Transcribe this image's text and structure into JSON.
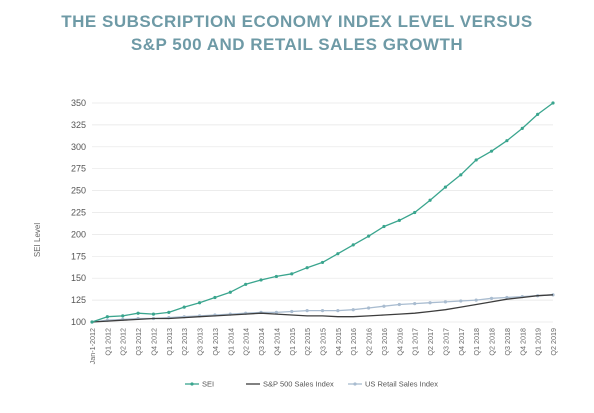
{
  "chart_data": {
    "type": "line",
    "title_lines": [
      "THE SUBSCRIPTION ECONOMY INDEX LEVEL VERSUS",
      "S&P 500 AND RETAIL SALES GROWTH"
    ],
    "xlabel": "",
    "ylabel": "SEI Level",
    "ylim": [
      100,
      350
    ],
    "yticks": [
      100,
      125,
      150,
      175,
      200,
      225,
      250,
      275,
      300,
      325,
      350
    ],
    "grid": true,
    "legend_position": "bottom",
    "categories": [
      "Jan-1-2012",
      "Q1 2012",
      "Q2 2012",
      "Q3 2012",
      "Q4 2012",
      "Q1 2013",
      "Q2 2013",
      "Q3 2013",
      "Q4 2013",
      "Q1 2014",
      "Q2 2014",
      "Q3 2014",
      "Q4 2014",
      "Q1 2015",
      "Q2 2015",
      "Q3 2015",
      "Q4 2015",
      "Q1 2016",
      "Q2 2016",
      "Q3 2016",
      "Q4 2016",
      "Q1 2017",
      "Q2 2017",
      "Q3 2017",
      "Q4 2017",
      "Q1 2018",
      "Q2 2018",
      "Q3 2018",
      "Q4 2018",
      "Q1 2019",
      "Q2 2019"
    ],
    "series": [
      {
        "name": "SEI",
        "color": "#3aa58e",
        "marker": true,
        "values": [
          100,
          106,
          107,
          110,
          109,
          111,
          117,
          122,
          128,
          134,
          143,
          148,
          152,
          155,
          162,
          168,
          178,
          188,
          198,
          209,
          216,
          225,
          239,
          254,
          268,
          285,
          295,
          307,
          321,
          337,
          350
        ]
      },
      {
        "name": "S&P 500 Sales Index",
        "color": "#3d3d3d",
        "marker": false,
        "values": [
          100,
          101,
          102,
          103,
          104,
          104,
          105,
          106,
          107,
          108,
          109,
          110,
          109,
          108,
          107,
          107,
          106,
          106,
          107,
          108,
          109,
          110,
          112,
          114,
          117,
          120,
          123,
          126,
          128,
          130,
          131
        ]
      },
      {
        "name": "US Retail Sales Index",
        "color": "#a9bcd0",
        "marker": true,
        "values": [
          100,
          102,
          103,
          104,
          104,
          105,
          106,
          107,
          108,
          109,
          110,
          111,
          111,
          112,
          113,
          113,
          113,
          114,
          116,
          118,
          120,
          121,
          122,
          123,
          124,
          125,
          127,
          128,
          129,
          130,
          131
        ]
      }
    ]
  }
}
